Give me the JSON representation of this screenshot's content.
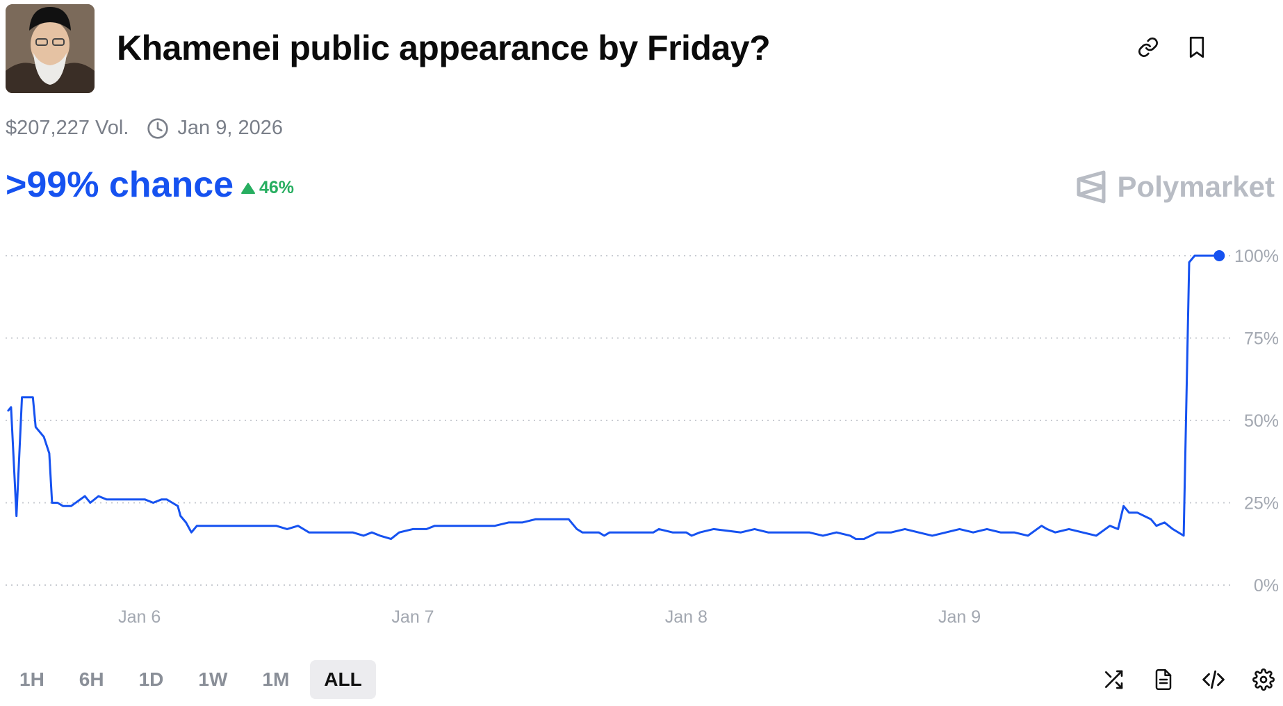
{
  "header": {
    "title": "Khamenei public appearance by Friday?",
    "link_icon": "link-icon",
    "bookmark_icon": "bookmark-icon"
  },
  "meta": {
    "volume": "$207,227 Vol.",
    "end_date": "Jan 9, 2026",
    "clock_icon": "clock-icon"
  },
  "summary": {
    "chance": ">99% chance",
    "change": "46%",
    "change_direction": "up"
  },
  "brand": {
    "name": "Polymarket"
  },
  "colors": {
    "line": "#1652f0",
    "up": "#27ae60",
    "grid": "#c9ccd2",
    "axis_text": "#a3a8b1"
  },
  "chart_data": {
    "type": "line",
    "title": "",
    "xlabel": "",
    "ylabel": "",
    "ylim": [
      0,
      100
    ],
    "y_ticks": [
      "100%",
      "75%",
      "50%",
      "25%",
      "0%"
    ],
    "x_range_days": [
      5.51,
      9.99
    ],
    "x_ticks": [
      {
        "label": "Jan 6",
        "day": 6
      },
      {
        "label": "Jan 7",
        "day": 7
      },
      {
        "label": "Jan 8",
        "day": 8
      },
      {
        "label": "Jan 9",
        "day": 9
      }
    ],
    "grid": true,
    "series": [
      {
        "name": "",
        "points": [
          [
            5.52,
            53
          ],
          [
            5.53,
            54
          ],
          [
            5.55,
            21
          ],
          [
            5.57,
            57
          ],
          [
            5.61,
            57
          ],
          [
            5.62,
            48
          ],
          [
            5.65,
            45
          ],
          [
            5.67,
            40
          ],
          [
            5.68,
            25
          ],
          [
            5.7,
            25
          ],
          [
            5.72,
            24
          ],
          [
            5.75,
            24
          ],
          [
            5.8,
            27
          ],
          [
            5.82,
            25
          ],
          [
            5.85,
            27
          ],
          [
            5.88,
            26
          ],
          [
            5.95,
            26
          ],
          [
            5.99,
            26
          ],
          [
            6.02,
            26
          ],
          [
            6.05,
            25
          ],
          [
            6.08,
            26
          ],
          [
            6.1,
            26
          ],
          [
            6.12,
            25
          ],
          [
            6.14,
            24
          ],
          [
            6.15,
            21
          ],
          [
            6.17,
            19
          ],
          [
            6.19,
            16
          ],
          [
            6.21,
            18
          ],
          [
            6.23,
            18
          ],
          [
            6.3,
            18
          ],
          [
            6.4,
            18
          ],
          [
            6.5,
            18
          ],
          [
            6.54,
            17
          ],
          [
            6.58,
            18
          ],
          [
            6.62,
            16
          ],
          [
            6.7,
            16
          ],
          [
            6.78,
            16
          ],
          [
            6.82,
            15
          ],
          [
            6.85,
            16
          ],
          [
            6.88,
            15
          ],
          [
            6.92,
            14
          ],
          [
            6.95,
            16
          ],
          [
            7.0,
            17
          ],
          [
            7.05,
            17
          ],
          [
            7.08,
            18
          ],
          [
            7.12,
            18
          ],
          [
            7.2,
            18
          ],
          [
            7.3,
            18
          ],
          [
            7.35,
            19
          ],
          [
            7.4,
            19
          ],
          [
            7.45,
            20
          ],
          [
            7.5,
            20
          ],
          [
            7.57,
            20
          ],
          [
            7.6,
            17
          ],
          [
            7.62,
            16
          ],
          [
            7.68,
            16
          ],
          [
            7.7,
            15
          ],
          [
            7.72,
            16
          ],
          [
            7.8,
            16
          ],
          [
            7.88,
            16
          ],
          [
            7.9,
            17
          ],
          [
            7.95,
            16
          ],
          [
            8.0,
            16
          ],
          [
            8.02,
            15
          ],
          [
            8.05,
            16
          ],
          [
            8.1,
            17
          ],
          [
            8.2,
            16
          ],
          [
            8.25,
            17
          ],
          [
            8.3,
            16
          ],
          [
            8.35,
            16
          ],
          [
            8.4,
            16
          ],
          [
            8.45,
            16
          ],
          [
            8.5,
            15
          ],
          [
            8.55,
            16
          ],
          [
            8.6,
            15
          ],
          [
            8.62,
            14
          ],
          [
            8.65,
            14
          ],
          [
            8.7,
            16
          ],
          [
            8.75,
            16
          ],
          [
            8.8,
            17
          ],
          [
            8.85,
            16
          ],
          [
            8.9,
            15
          ],
          [
            8.95,
            16
          ],
          [
            9.0,
            17
          ],
          [
            9.05,
            16
          ],
          [
            9.1,
            17
          ],
          [
            9.15,
            16
          ],
          [
            9.2,
            16
          ],
          [
            9.25,
            15
          ],
          [
            9.3,
            18
          ],
          [
            9.32,
            17
          ],
          [
            9.35,
            16
          ],
          [
            9.4,
            17
          ],
          [
            9.45,
            16
          ],
          [
            9.5,
            15
          ],
          [
            9.55,
            18
          ],
          [
            9.58,
            17
          ],
          [
            9.6,
            24
          ],
          [
            9.62,
            22
          ],
          [
            9.65,
            22
          ],
          [
            9.7,
            20
          ],
          [
            9.72,
            18
          ],
          [
            9.75,
            19
          ],
          [
            9.78,
            17
          ],
          [
            9.82,
            15
          ],
          [
            9.84,
            98
          ],
          [
            9.86,
            100
          ],
          [
            9.9,
            100
          ],
          [
            9.95,
            100
          ]
        ]
      }
    ]
  },
  "time_ranges": {
    "options": [
      "1H",
      "6H",
      "1D",
      "1W",
      "1M",
      "ALL"
    ],
    "selected": "ALL"
  },
  "toolbar": {
    "icons": [
      "shuffle-icon",
      "document-icon",
      "code-icon",
      "gear-icon"
    ]
  }
}
